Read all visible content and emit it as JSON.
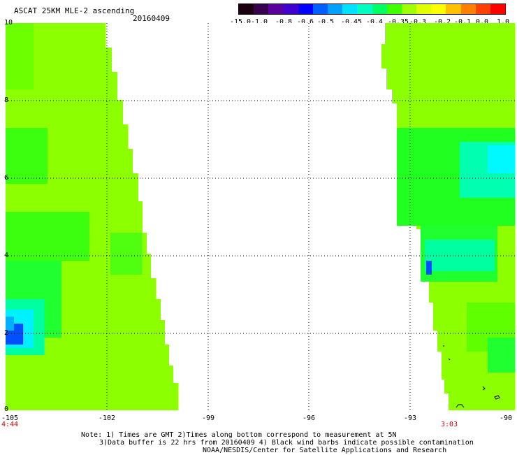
{
  "header": {
    "title": "ASCAT 25KM MLE-2 ascending",
    "date": "20160409"
  },
  "colorbar": {
    "labels": [
      "-15.0",
      "-1.0",
      "-0.8",
      "-0.6",
      "-0.5",
      "-0.45",
      "-0.4",
      "-0.35",
      "-0.3",
      "-0.2",
      "-0.1",
      "0.0",
      "1.0"
    ],
    "colors": [
      "#1a0010",
      "#3a0050",
      "#5a00a0",
      "#4000d0",
      "#0000ff",
      "#0060ff",
      "#00a0ff",
      "#00e0ff",
      "#00ffc0",
      "#00ff60",
      "#40ff00",
      "#a0ff00",
      "#e0ff00",
      "#ffff00",
      "#ffc000",
      "#ff8000",
      "#ff4000",
      "#ff0000"
    ]
  },
  "map": {
    "x_ticks": [
      "-105",
      "-102",
      "-99",
      "-96",
      "-93",
      "-90"
    ],
    "y_ticks": [
      "0",
      "2",
      "4",
      "6",
      "8",
      "10"
    ],
    "time_left": "4:44",
    "time_right": "3:03",
    "field_color": "#8cff00",
    "accent_green": "#1aff1a",
    "accent_cyan": "#00ffd0",
    "accent_blue": "#0040ff"
  },
  "notes": {
    "line1": "Note: 1) Times are GMT 2)Times along bottom correspond to measurement at 5N",
    "line2": "3)Data buffer is 22 hrs from 20160409 4) Black wind barbs indicate possible contamination",
    "line3": "NOAA/NESDIS/Center for Satellite Applications and Research"
  }
}
